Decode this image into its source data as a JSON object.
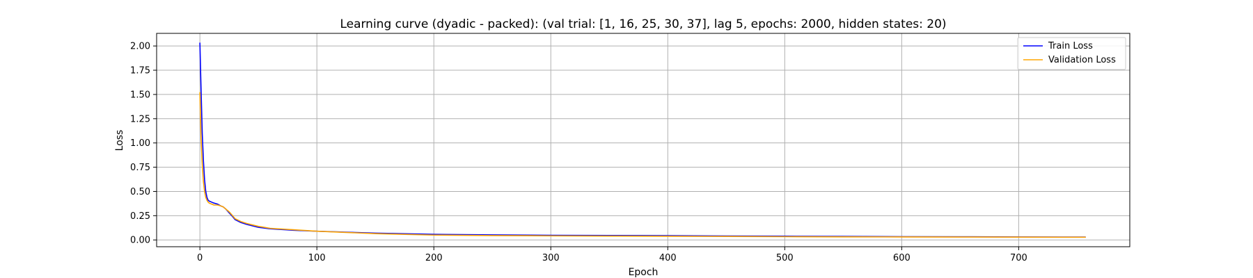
{
  "chart_data": {
    "type": "line",
    "title": "Learning curve (dyadic - packed): (val trial: [1, 16, 25, 30, 37], lag 5, epochs: 2000, hidden states: 20)",
    "xlabel": "Epoch",
    "ylabel": "Loss",
    "xlim": [
      -37,
      795
    ],
    "ylim": [
      -0.07,
      2.13
    ],
    "xticks": [
      0,
      100,
      200,
      300,
      400,
      500,
      600,
      700
    ],
    "yticks": [
      0.0,
      0.25,
      0.5,
      0.75,
      1.0,
      1.25,
      1.5,
      1.75,
      2.0
    ],
    "ytick_labels": [
      "0.00",
      "0.25",
      "0.50",
      "0.75",
      "1.00",
      "1.25",
      "1.50",
      "1.75",
      "2.00"
    ],
    "grid": true,
    "legend_position": "top-right",
    "series": [
      {
        "name": "Train Loss",
        "color": "#0000ff",
        "x": [
          0,
          1,
          2,
          3,
          4,
          5,
          6,
          7,
          8,
          10,
          12,
          15,
          18,
          20,
          22,
          25,
          28,
          30,
          35,
          40,
          50,
          60,
          80,
          100,
          150,
          200,
          250,
          300,
          350,
          400,
          450,
          500,
          550,
          600,
          650,
          700,
          757
        ],
        "y": [
          2.03,
          1.55,
          1.1,
          0.82,
          0.62,
          0.5,
          0.44,
          0.41,
          0.4,
          0.39,
          0.38,
          0.37,
          0.35,
          0.34,
          0.32,
          0.28,
          0.24,
          0.21,
          0.18,
          0.16,
          0.13,
          0.115,
          0.1,
          0.09,
          0.07,
          0.058,
          0.052,
          0.048,
          0.046,
          0.044,
          0.041,
          0.039,
          0.036,
          0.034,
          0.033,
          0.031,
          0.03
        ]
      },
      {
        "name": "Validation Loss",
        "color": "#ffa500",
        "x": [
          0,
          1,
          2,
          3,
          4,
          5,
          6,
          7,
          8,
          10,
          12,
          15,
          18,
          20,
          22,
          25,
          28,
          30,
          35,
          40,
          50,
          60,
          80,
          100,
          150,
          200,
          250,
          300,
          350,
          400,
          450,
          500,
          550,
          600,
          650,
          700,
          757
        ],
        "y": [
          1.52,
          1.05,
          0.78,
          0.6,
          0.5,
          0.44,
          0.41,
          0.39,
          0.38,
          0.37,
          0.36,
          0.36,
          0.35,
          0.34,
          0.32,
          0.29,
          0.25,
          0.22,
          0.19,
          0.17,
          0.14,
          0.12,
          0.105,
          0.09,
          0.065,
          0.05,
          0.045,
          0.042,
          0.04,
          0.038,
          0.036,
          0.034,
          0.032,
          0.031,
          0.03,
          0.029,
          0.028
        ]
      }
    ]
  }
}
